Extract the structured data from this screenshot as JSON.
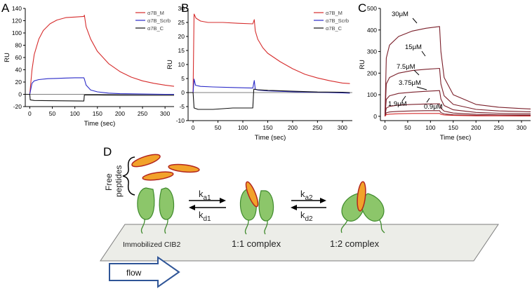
{
  "chart_data": [
    {
      "panel": "A",
      "type": "line",
      "xlabel": "Time (sec)",
      "ylabel": "RU",
      "xlim": [
        -10,
        320
      ],
      "ylim": [
        -20,
        140
      ],
      "xticks": [
        0,
        50,
        100,
        150,
        200,
        250,
        300
      ],
      "yticks": [
        -20,
        0,
        20,
        40,
        60,
        80,
        100,
        120,
        140
      ],
      "legend_position": "top-right",
      "series": [
        {
          "name": "α7B_M",
          "color": "#d62c2c",
          "x": [
            0,
            5,
            10,
            20,
            30,
            45,
            60,
            80,
            100,
            120,
            121,
            125,
            135,
            150,
            175,
            200,
            225,
            250,
            275,
            300,
            320
          ],
          "y": [
            0,
            40,
            65,
            90,
            104,
            115,
            121,
            125,
            126,
            127,
            129,
            110,
            90,
            70,
            50,
            37,
            28,
            22,
            18,
            15,
            13
          ]
        },
        {
          "name": "α7B_Scrb",
          "color": "#2a2ac8",
          "x": [
            0,
            5,
            10,
            20,
            40,
            60,
            80,
            100,
            120,
            121,
            125,
            135,
            150,
            175,
            200,
            250,
            300,
            320
          ],
          "y": [
            0,
            18,
            22,
            24,
            25.5,
            26,
            26.5,
            27,
            27,
            25,
            15,
            7,
            4,
            2,
            1,
            0.5,
            0,
            0
          ]
        },
        {
          "name": "α7B_C",
          "color": "#111111",
          "x": [
            -10,
            0,
            1,
            10,
            60,
            120,
            121,
            150,
            200,
            250,
            300,
            320
          ],
          "y": [
            0,
            0,
            -9,
            -10,
            -10.5,
            -11,
            -1,
            -1,
            -1.5,
            -1.5,
            -1.5,
            -1.5
          ]
        }
      ]
    },
    {
      "panel": "B",
      "type": "line",
      "xlabel": "Time (sec)",
      "ylabel": "RU",
      "xlim": [
        -10,
        320
      ],
      "ylim": [
        -10,
        30
      ],
      "xticks": [
        0,
        50,
        100,
        150,
        200,
        250,
        300
      ],
      "yticks": [
        -10,
        -5,
        0,
        5,
        10,
        15,
        20,
        25,
        30
      ],
      "legend_position": "top-right",
      "series": [
        {
          "name": "α7B_M",
          "color": "#d62c2c",
          "x": [
            -10,
            0,
            2,
            6,
            15,
            30,
            60,
            90,
            120,
            123,
            125,
            130,
            140,
            150,
            175,
            200,
            225,
            250,
            275,
            300,
            315
          ],
          "y": [
            0,
            0,
            28,
            26.5,
            25.5,
            25,
            25,
            24.7,
            24.5,
            26,
            22,
            19,
            16,
            14,
            11,
            8.5,
            6.5,
            5.2,
            4.2,
            3.4,
            3.2
          ]
        },
        {
          "name": "α7B_Scrb",
          "color": "#2a2ac8",
          "x": [
            -10,
            0,
            2,
            5,
            15,
            40,
            80,
            120,
            123,
            125,
            130,
            150,
            200,
            250,
            300,
            315
          ],
          "y": [
            0,
            0,
            4.8,
            2.6,
            2.2,
            2,
            1.8,
            1.6,
            4.3,
            1.2,
            0.9,
            0.6,
            0.3,
            0.1,
            -0.1,
            -0.2
          ]
        },
        {
          "name": "α7B_C",
          "color": "#111111",
          "x": [
            -10,
            0,
            2,
            10,
            40,
            80,
            120,
            122,
            130,
            150,
            200,
            250,
            300,
            315
          ],
          "y": [
            0,
            0,
            -5.5,
            -6,
            -6,
            -5.5,
            -5.5,
            1.2,
            1,
            0.8,
            0.5,
            0.2,
            0.1,
            0
          ]
        }
      ]
    },
    {
      "panel": "C",
      "type": "line",
      "xlabel": "Time (sec)",
      "ylabel": "RU",
      "xlim": [
        -10,
        320
      ],
      "ylim": [
        -20,
        500
      ],
      "xticks": [
        0,
        50,
        100,
        150,
        200,
        250,
        300
      ],
      "yticks": [
        0,
        100,
        200,
        300,
        400,
        500
      ],
      "series": [
        {
          "label": "30μM",
          "color": "#7a1f2a",
          "x": [
            0,
            3,
            10,
            30,
            60,
            90,
            120,
            123,
            130,
            150,
            200,
            250,
            300,
            320
          ],
          "y": [
            0,
            270,
            330,
            370,
            395,
            408,
            416,
            300,
            180,
            100,
            55,
            42,
            36,
            34
          ]
        },
        {
          "label": "15μM",
          "color": "#7a1f2a",
          "x": [
            0,
            3,
            10,
            30,
            60,
            90,
            120,
            123,
            130,
            150,
            200,
            250,
            300,
            320
          ],
          "y": [
            0,
            150,
            180,
            200,
            212,
            218,
            222,
            150,
            95,
            55,
            32,
            25,
            22,
            21
          ]
        },
        {
          "label": "7.5μM",
          "color": "#7a1f2a",
          "x": [
            0,
            3,
            10,
            30,
            60,
            90,
            120,
            123,
            130,
            150,
            200,
            250,
            300,
            320
          ],
          "y": [
            0,
            78,
            95,
            106,
            112,
            116,
            119,
            80,
            50,
            30,
            18,
            14,
            12,
            12
          ]
        },
        {
          "label": "3.75μM",
          "color": "#7a1f2a",
          "x": [
            0,
            3,
            10,
            30,
            60,
            90,
            120,
            123,
            130,
            150,
            200,
            250,
            300,
            320
          ],
          "y": [
            0,
            38,
            46,
            52,
            55,
            57,
            58,
            38,
            24,
            15,
            9,
            7,
            6,
            6
          ]
        },
        {
          "label": "1.9μM",
          "color": "#7a1f2a",
          "x": [
            0,
            3,
            10,
            30,
            60,
            90,
            120,
            123,
            130,
            150,
            200,
            250,
            300,
            320
          ],
          "y": [
            0,
            16,
            20,
            23,
            25,
            26,
            26,
            17,
            11,
            7,
            4,
            3,
            3,
            3
          ]
        },
        {
          "label": "0.9μM",
          "color": "#d62c2c",
          "x": [
            0,
            3,
            10,
            30,
            60,
            90,
            120,
            123,
            130,
            150,
            200,
            250,
            300,
            320
          ],
          "y": [
            0,
            8,
            10,
            12,
            13,
            13,
            13,
            9,
            6,
            4,
            2,
            2,
            1,
            1
          ]
        }
      ]
    }
  ],
  "diagram": {
    "panel": "D",
    "free_peptides_label": [
      "Free",
      "peptides"
    ],
    "rate_labels": [
      {
        "main": "k",
        "sub": "a1"
      },
      {
        "main": "k",
        "sub": "d1"
      },
      {
        "main": "k",
        "sub": "a2"
      },
      {
        "main": "k",
        "sub": "d2"
      }
    ],
    "surface_labels": [
      "Immobilized CIB2",
      "1:1 complex",
      "1:2 complex"
    ],
    "flow_label": "flow",
    "colors": {
      "protein": "#8cc66a",
      "protein_edge": "#3f8a2c",
      "peptide": "#f2a22a",
      "peptide_edge": "#b3261e",
      "surface": "#ecede8",
      "flow_arrow": "#2f5597"
    }
  }
}
